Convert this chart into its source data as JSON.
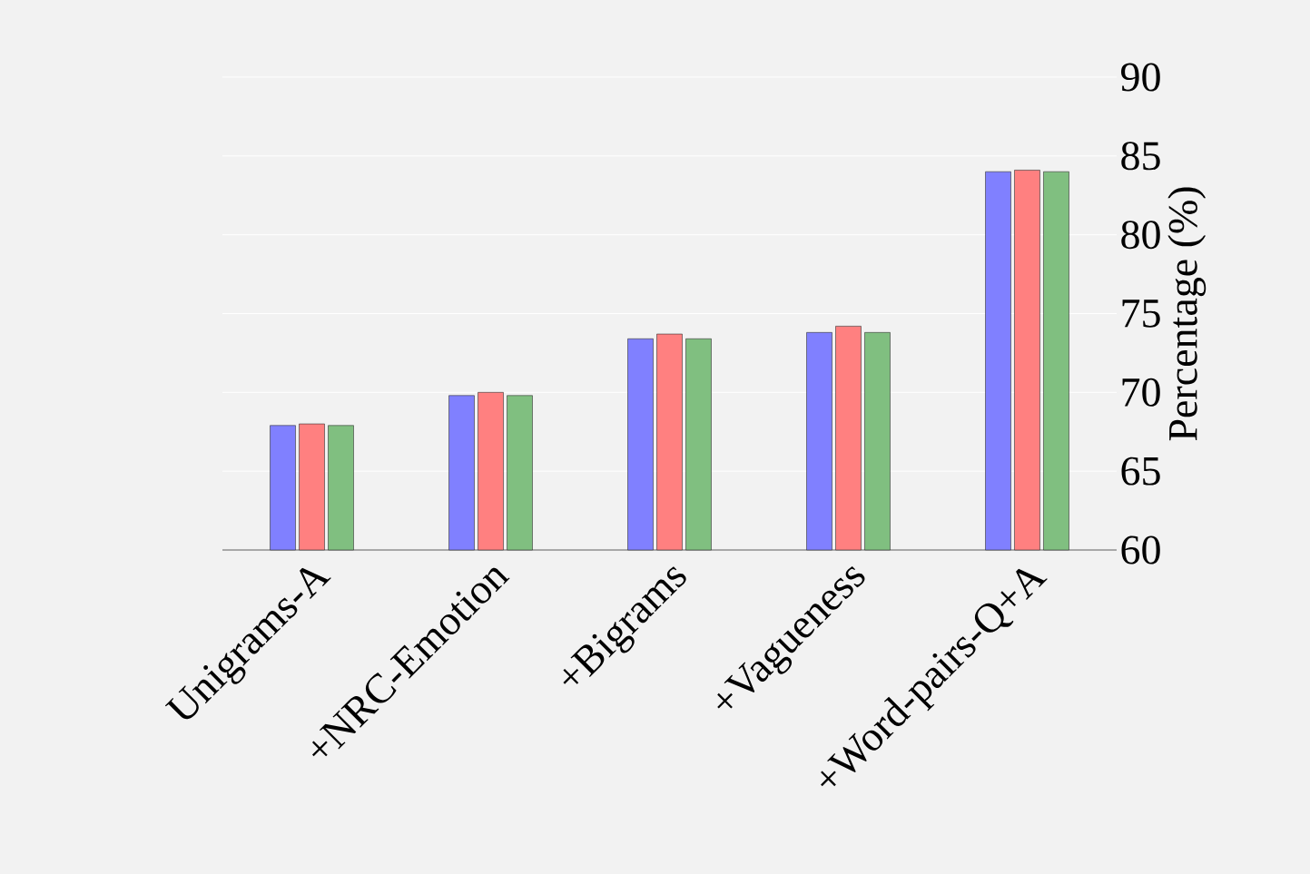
{
  "chart_data": {
    "type": "bar",
    "categories": [
      "Unigrams-A",
      "+NRC-Emotion",
      "+Bigrams",
      "+Vagueness",
      "+Word-pairs-Q+A"
    ],
    "series": [
      {
        "color": "#8080ff",
        "values": [
          67.9,
          69.8,
          73.4,
          73.8,
          84.0
        ]
      },
      {
        "color": "#ff8080",
        "values": [
          68.0,
          70.0,
          73.7,
          74.2,
          84.1
        ]
      },
      {
        "color": "#80bf80",
        "values": [
          67.9,
          69.8,
          73.4,
          73.8,
          84.0
        ]
      }
    ],
    "ylabel": "Percentage (%)",
    "ylim": [
      60,
      90
    ],
    "yticks": [
      60,
      65,
      70,
      75,
      80,
      85,
      90
    ],
    "grid": "y"
  }
}
